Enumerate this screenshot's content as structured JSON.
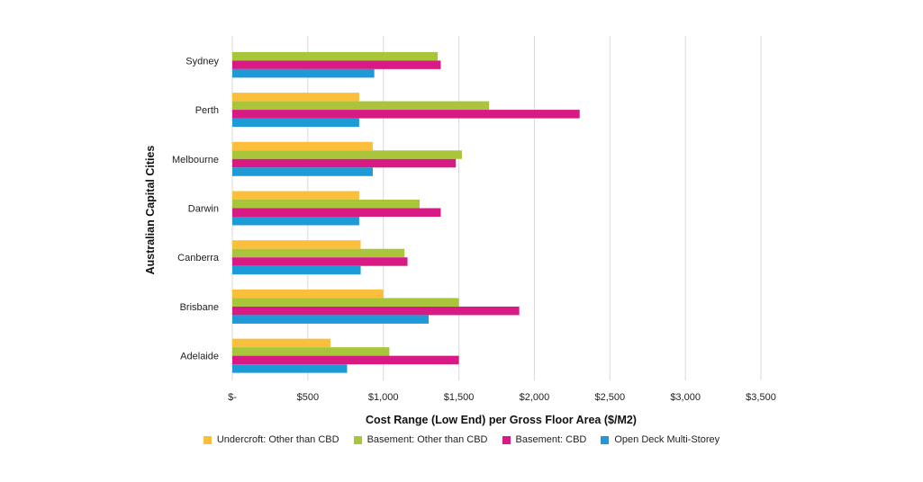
{
  "chart_data": {
    "type": "bar",
    "orientation": "horizontal",
    "title": "",
    "xlabel": "Cost Range (Low End) per Gross Floor Area ($/M2)",
    "ylabel": "Australian Capital Cities",
    "xlim": [
      0,
      3500
    ],
    "x_ticks": [
      0,
      500,
      1000,
      1500,
      2000,
      2500,
      3000,
      3500
    ],
    "x_tick_labels": [
      "$-",
      "$500",
      "$1,000",
      "$1,500",
      "$2,000",
      "$2,500",
      "$3,000",
      "$3,500"
    ],
    "grid": "vertical",
    "legend_position": "bottom",
    "categories": [
      "Sydney",
      "Perth",
      "Melbourne",
      "Darwin",
      "Canberra",
      "Brisbane",
      "Adelaide"
    ],
    "series": [
      {
        "name": "Undercroft: Other than CBD",
        "color": "#FBBF3B",
        "values": [
          0,
          840,
          930,
          840,
          850,
          1000,
          650
        ]
      },
      {
        "name": "Basement: Other than CBD",
        "color": "#A9C63A",
        "values": [
          1360,
          1700,
          1520,
          1240,
          1140,
          1500,
          1040
        ]
      },
      {
        "name": "Basement: CBD",
        "color": "#D81B84",
        "values": [
          1380,
          2300,
          1480,
          1380,
          1160,
          1900,
          1500
        ]
      },
      {
        "name": "Open Deck Multi-Storey",
        "color": "#1E9BD7",
        "values": [
          940,
          840,
          930,
          840,
          850,
          1300,
          760
        ]
      }
    ]
  }
}
